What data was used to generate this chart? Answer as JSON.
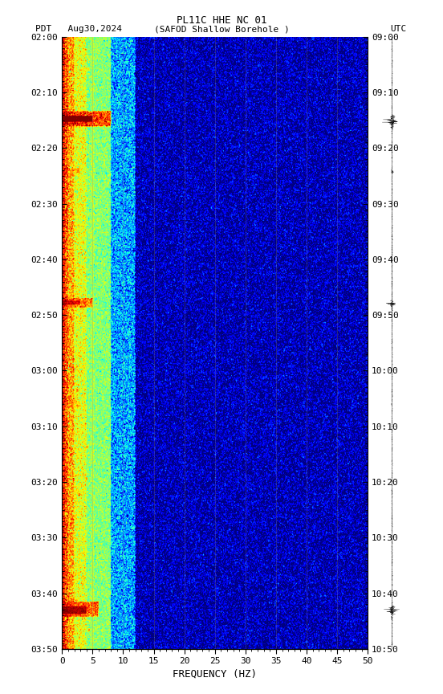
{
  "title_line1": "PL11C HHE NC 01",
  "title_line2_left": "PDT   Aug30,2024",
  "title_line2_center": "(SAFOD Shallow Borehole )",
  "title_line2_right": "UTC",
  "xlabel": "FREQUENCY (HZ)",
  "freq_min": 0,
  "freq_max": 50,
  "pdt_ticks": [
    "02:00",
    "02:10",
    "02:20",
    "02:30",
    "02:40",
    "02:50",
    "03:00",
    "03:10",
    "03:20",
    "03:30",
    "03:40",
    "03:50"
  ],
  "utc_ticks": [
    "09:00",
    "09:10",
    "09:20",
    "09:30",
    "09:40",
    "09:50",
    "10:00",
    "10:10",
    "10:20",
    "10:30",
    "10:40",
    "10:50"
  ],
  "freq_ticks": [
    0,
    5,
    10,
    15,
    20,
    25,
    30,
    35,
    40,
    45,
    50
  ],
  "fig_width": 5.52,
  "fig_height": 8.64,
  "bg_color": "#000090",
  "colormap": "jet",
  "grid_color": "#888888",
  "grid_alpha": 0.4,
  "vertical_grid_freqs": [
    5,
    10,
    15,
    20,
    25,
    30,
    35,
    40,
    45
  ],
  "noise_seed": 42
}
